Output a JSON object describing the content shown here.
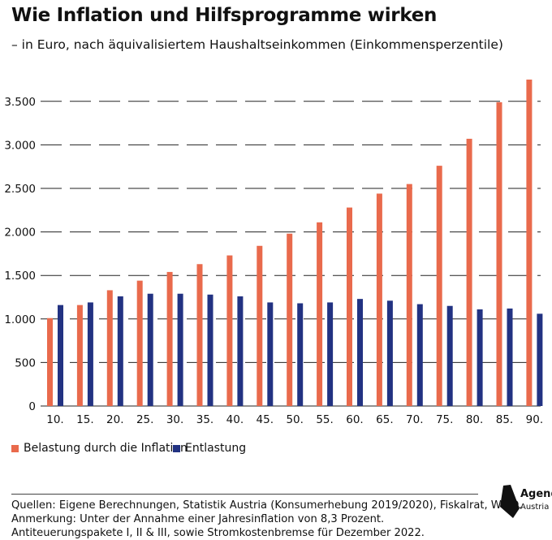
{
  "title": "Wie Inflation und Hilfsprogramme wirken",
  "subtitle": "– in Euro, nach äquivalisiertem Haushaltseinkommen (Einkommensperzentile)",
  "colors": {
    "belastung": "#e96a4c",
    "entlastung": "#223282",
    "grid": "#222222"
  },
  "chart_data": {
    "type": "bar",
    "categories": [
      "10.",
      "15.",
      "20.",
      "25.",
      "30.",
      "35.",
      "40.",
      "45.",
      "50.",
      "55.",
      "60.",
      "65.",
      "70.",
      "75.",
      "80.",
      "85.",
      "90."
    ],
    "series": [
      {
        "name": "Belastung durch die Inflation",
        "values": [
          1010,
          1160,
          1330,
          1440,
          1540,
          1630,
          1730,
          1840,
          1980,
          2110,
          2280,
          2440,
          2550,
          2760,
          3070,
          3490,
          3750
        ]
      },
      {
        "name": "Entlastung",
        "values": [
          1160,
          1190,
          1260,
          1290,
          1290,
          1280,
          1260,
          1190,
          1180,
          1190,
          1230,
          1210,
          1170,
          1150,
          1110,
          1120,
          1060
        ]
      }
    ],
    "yticks": [
      0,
      500,
      1000,
      1500,
      2000,
      2500,
      3000,
      3500
    ],
    "ytick_labels": [
      "0",
      "500",
      "1.000",
      "1.500",
      "2.000",
      "2.500",
      "3.000",
      "3.500"
    ],
    "ylim": [
      0,
      3750
    ],
    "grid": "horizontal dashed",
    "legend_position": "bottom-left"
  },
  "footer": {
    "line1": "Quellen: Eigene Berechnungen, Statistik Austria (Konsumerhebung 2019/2020), Fiskalrat, WIFO.",
    "line2": "Anmerkung: Unter der Annahme einer Jahresinflation von 8,3 Prozent.",
    "line3": "Antiteuerungspakete I, II & III, sowie Stromkostenbremse für Dezember 2022."
  },
  "logo": {
    "line1": "Agenda",
    "line2": "Austria"
  }
}
